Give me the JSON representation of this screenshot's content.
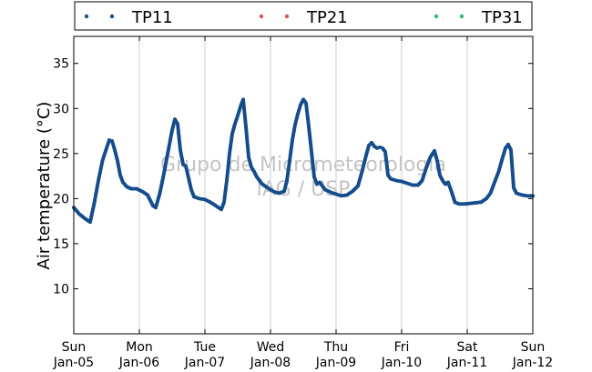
{
  "chart_data": {
    "type": "scatter",
    "ylabel": "Air temperature (°C)",
    "ylim": [
      5,
      38
    ],
    "yticks": [
      10,
      15,
      20,
      25,
      30,
      35
    ],
    "xlim": [
      "2014-01-05",
      "2014-01-12"
    ],
    "xticks": [
      {
        "day": "Sun",
        "date": "Jan-05"
      },
      {
        "day": "Mon",
        "date": "Jan-06"
      },
      {
        "day": "Tue",
        "date": "Jan-07"
      },
      {
        "day": "Wed",
        "date": "Jan-08"
      },
      {
        "day": "Thu",
        "date": "Jan-09"
      },
      {
        "day": "Fri",
        "date": "Jan-10"
      },
      {
        "day": "Sat",
        "date": "Jan-11"
      },
      {
        "day": "Sun",
        "date": "Jan-12"
      }
    ],
    "grid": "vertical",
    "legend_position": "top",
    "watermark": [
      "Grupo de Micrometeorologia",
      "IAG / USP"
    ],
    "series": [
      {
        "name": "TP11",
        "color": "#154d8c",
        "points": [
          [
            "2014-01-05 00:00",
            19.0
          ],
          [
            "2014-01-05 02:00",
            18.3
          ],
          [
            "2014-01-05 04:00",
            17.8
          ],
          [
            "2014-01-05 06:00",
            17.4
          ],
          [
            "2014-01-05 07:30",
            19.5
          ],
          [
            "2014-01-05 09:00",
            22.0
          ],
          [
            "2014-01-05 10:30",
            24.2
          ],
          [
            "2014-01-05 12:00",
            25.6
          ],
          [
            "2014-01-05 13:00",
            26.5
          ],
          [
            "2014-01-05 14:00",
            26.4
          ],
          [
            "2014-01-05 15:00",
            25.4
          ],
          [
            "2014-01-05 16:00",
            24.2
          ],
          [
            "2014-01-05 17:00",
            22.6
          ],
          [
            "2014-01-05 18:00",
            21.8
          ],
          [
            "2014-01-05 19:30",
            21.3
          ],
          [
            "2014-01-05 21:00",
            21.1
          ],
          [
            "2014-01-05 23:00",
            21.1
          ],
          [
            "2014-01-06 01:00",
            20.8
          ],
          [
            "2014-01-06 03:00",
            20.4
          ],
          [
            "2014-01-06 05:00",
            19.2
          ],
          [
            "2014-01-06 06:00",
            19.0
          ],
          [
            "2014-01-06 07:30",
            20.6
          ],
          [
            "2014-01-06 09:00",
            22.8
          ],
          [
            "2014-01-06 10:30",
            25.2
          ],
          [
            "2014-01-06 12:00",
            27.6
          ],
          [
            "2014-01-06 13:00",
            28.8
          ],
          [
            "2014-01-06 14:00",
            28.3
          ],
          [
            "2014-01-06 15:00",
            25.4
          ],
          [
            "2014-01-06 16:00",
            23.8
          ],
          [
            "2014-01-06 17:00",
            23.6
          ],
          [
            "2014-01-06 18:00",
            22.3
          ],
          [
            "2014-01-06 19:00",
            21.0
          ],
          [
            "2014-01-06 20:00",
            20.2
          ],
          [
            "2014-01-06 22:00",
            20.0
          ],
          [
            "2014-01-07 00:00",
            19.9
          ],
          [
            "2014-01-07 02:00",
            19.6
          ],
          [
            "2014-01-07 04:00",
            19.2
          ],
          [
            "2014-01-07 06:00",
            18.8
          ],
          [
            "2014-01-07 07:00",
            19.6
          ],
          [
            "2014-01-07 08:00",
            22.0
          ],
          [
            "2014-01-07 09:00",
            25.0
          ],
          [
            "2014-01-07 10:00",
            27.2
          ],
          [
            "2014-01-07 11:00",
            28.3
          ],
          [
            "2014-01-07 12:00",
            29.2
          ],
          [
            "2014-01-07 13:00",
            30.2
          ],
          [
            "2014-01-07 14:00",
            31.0
          ],
          [
            "2014-01-07 15:00",
            28.0
          ],
          [
            "2014-01-07 16:00",
            24.6
          ],
          [
            "2014-01-07 17:00",
            23.5
          ],
          [
            "2014-01-07 18:00",
            23.0
          ],
          [
            "2014-01-07 19:00",
            22.4
          ],
          [
            "2014-01-07 21:00",
            21.6
          ],
          [
            "2014-01-07 23:00",
            21.2
          ],
          [
            "2014-01-08 01:00",
            20.8
          ],
          [
            "2014-01-08 03:00",
            20.6
          ],
          [
            "2014-01-08 05:00",
            20.8
          ],
          [
            "2014-01-08 06:00",
            22.0
          ],
          [
            "2014-01-08 07:00",
            24.2
          ],
          [
            "2014-01-08 08:00",
            26.5
          ],
          [
            "2014-01-08 09:00",
            28.2
          ],
          [
            "2014-01-08 10:00",
            29.4
          ],
          [
            "2014-01-08 11:00",
            30.4
          ],
          [
            "2014-01-08 12:00",
            31.0
          ],
          [
            "2014-01-08 13:00",
            30.6
          ],
          [
            "2014-01-08 14:00",
            28.0
          ],
          [
            "2014-01-08 15:00",
            25.2
          ],
          [
            "2014-01-08 16:00",
            22.4
          ],
          [
            "2014-01-08 17:00",
            21.6
          ],
          [
            "2014-01-08 18:00",
            21.8
          ],
          [
            "2014-01-08 20:00",
            21.0
          ],
          [
            "2014-01-08 22:00",
            20.7
          ],
          [
            "2014-01-09 00:00",
            20.5
          ],
          [
            "2014-01-09 02:00",
            20.3
          ],
          [
            "2014-01-09 04:00",
            20.4
          ],
          [
            "2014-01-09 06:00",
            20.8
          ],
          [
            "2014-01-09 08:00",
            21.4
          ],
          [
            "2014-01-09 09:30",
            23.0
          ],
          [
            "2014-01-09 11:00",
            24.8
          ],
          [
            "2014-01-09 12:00",
            25.9
          ],
          [
            "2014-01-09 13:00",
            26.2
          ],
          [
            "2014-01-09 14:00",
            25.8
          ],
          [
            "2014-01-09 15:00",
            25.6
          ],
          [
            "2014-01-09 16:00",
            25.7
          ],
          [
            "2014-01-09 17:00",
            25.6
          ],
          [
            "2014-01-09 18:00",
            25.2
          ],
          [
            "2014-01-09 19:00",
            22.6
          ],
          [
            "2014-01-09 20:00",
            22.2
          ],
          [
            "2014-01-09 22:00",
            22.0
          ],
          [
            "2014-01-10 00:00",
            21.9
          ],
          [
            "2014-01-10 02:00",
            21.7
          ],
          [
            "2014-01-10 04:00",
            21.5
          ],
          [
            "2014-01-10 06:00",
            21.5
          ],
          [
            "2014-01-10 07:30",
            22.0
          ],
          [
            "2014-01-10 09:00",
            23.4
          ],
          [
            "2014-01-10 10:30",
            24.6
          ],
          [
            "2014-01-10 12:00",
            25.3
          ],
          [
            "2014-01-10 13:00",
            24.2
          ],
          [
            "2014-01-10 14:00",
            22.6
          ],
          [
            "2014-01-10 15:00",
            22.0
          ],
          [
            "2014-01-10 16:00",
            21.6
          ],
          [
            "2014-01-10 17:00",
            21.8
          ],
          [
            "2014-01-10 18:00",
            21.0
          ],
          [
            "2014-01-10 19:30",
            19.6
          ],
          [
            "2014-01-10 21:00",
            19.4
          ],
          [
            "2014-01-10 23:00",
            19.4
          ],
          [
            "2014-01-11 02:00",
            19.5
          ],
          [
            "2014-01-11 05:00",
            19.6
          ],
          [
            "2014-01-11 07:00",
            20.0
          ],
          [
            "2014-01-11 08:30",
            20.6
          ],
          [
            "2014-01-11 10:00",
            21.8
          ],
          [
            "2014-01-11 11:30",
            23.0
          ],
          [
            "2014-01-11 13:00",
            24.6
          ],
          [
            "2014-01-11 14:00",
            25.6
          ],
          [
            "2014-01-11 15:00",
            26.0
          ],
          [
            "2014-01-11 16:00",
            25.4
          ],
          [
            "2014-01-11 17:00",
            21.2
          ],
          [
            "2014-01-11 18:00",
            20.6
          ],
          [
            "2014-01-11 20:00",
            20.4
          ],
          [
            "2014-01-11 22:00",
            20.3
          ],
          [
            "2014-01-12 00:00",
            20.3
          ]
        ]
      },
      {
        "name": "TP21",
        "color": "#d9534f",
        "points": []
      },
      {
        "name": "TP31",
        "color": "#2fbf71",
        "points": []
      }
    ]
  }
}
